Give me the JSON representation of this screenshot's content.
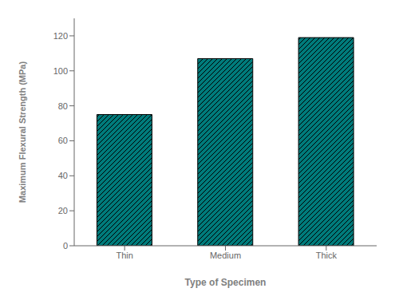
{
  "chart_data": {
    "type": "bar",
    "categories": [
      "Thin",
      "Medium",
      "Thick"
    ],
    "values": [
      75,
      107,
      119
    ],
    "color": "#007b7b",
    "xlabel": "Type of Specimen",
    "ylabel": "Maximum Flexural Strength (MPa)",
    "ylim": [
      0,
      130
    ],
    "yticks": [
      0,
      20,
      40,
      60,
      80,
      100,
      120
    ],
    "grid": false
  }
}
